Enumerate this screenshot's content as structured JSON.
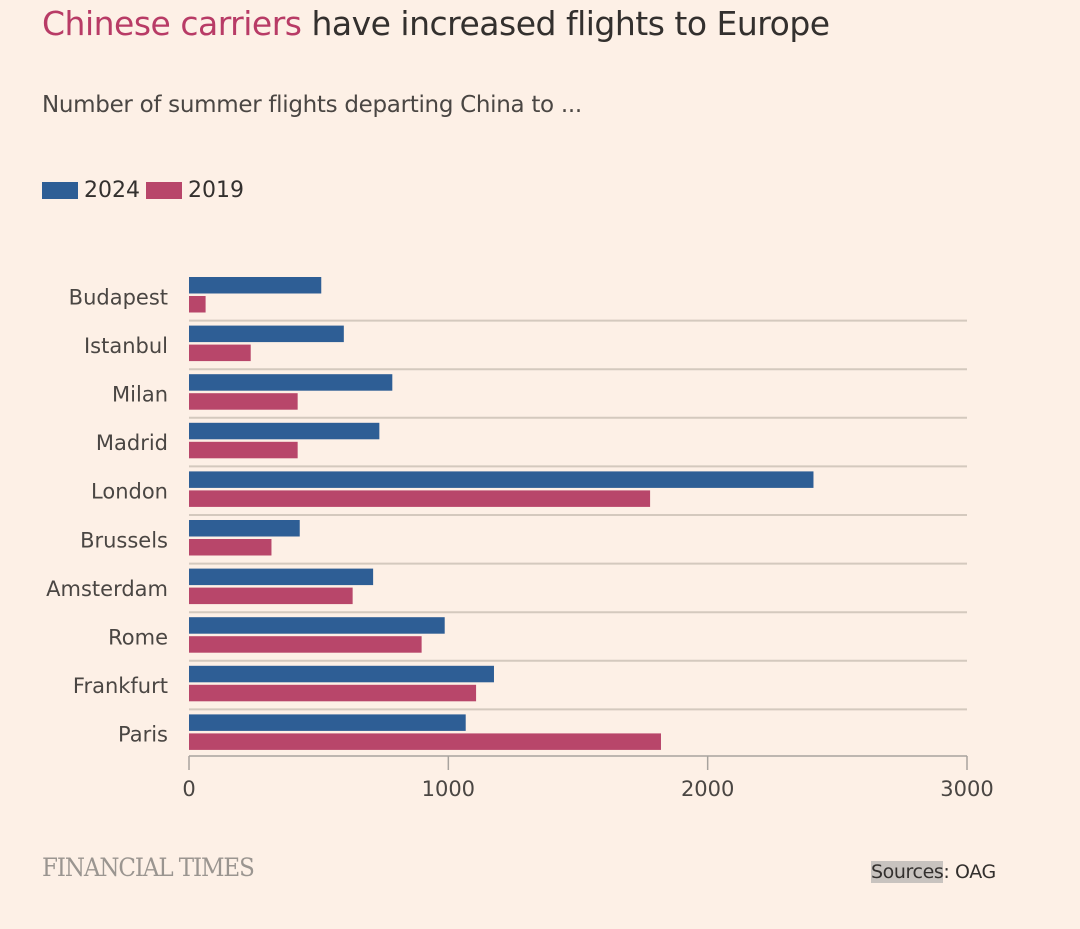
{
  "header": {
    "title_highlight": "Chinese carriers",
    "title_rest": " have increased flights to Europe",
    "subtitle": "Number of summer flights departing China to ..."
  },
  "legend": [
    {
      "label": "2024",
      "color": "#2e5e95"
    },
    {
      "label": "2019",
      "color": "#b8466a"
    }
  ],
  "footer": {
    "brand": "FINANCIAL TIMES",
    "source_label": "Sources",
    "source_rest": ": OAG"
  },
  "chart_data": {
    "type": "bar",
    "orientation": "horizontal",
    "title": "Chinese carriers have increased flights to Europe",
    "subtitle": "Number of summer flights departing China to ...",
    "xlabel": "",
    "ylabel": "",
    "categories": [
      "Budapest",
      "Istanbul",
      "Milan",
      "Madrid",
      "London",
      "Brussels",
      "Amsterdam",
      "Rome",
      "Frankfurt",
      "Paris"
    ],
    "series": [
      {
        "name": "2024",
        "color": "#2e5e95",
        "values": [
          510,
          597,
          784,
          734,
          2408,
          427,
          710,
          986,
          1176,
          1067
        ]
      },
      {
        "name": "2019",
        "color": "#b8466a",
        "values": [
          64,
          238,
          419,
          419,
          1778,
          318,
          631,
          897,
          1107,
          1820
        ]
      }
    ],
    "xlim": [
      0,
      3000
    ],
    "xticks": [
      0,
      1000,
      2000,
      3000
    ],
    "xtick_labels": [
      "0",
      "1000",
      "2000",
      "3000"
    ],
    "grid": "horizontal separators between categories",
    "legend_position": "top-left",
    "source": "Sources: OAG"
  }
}
